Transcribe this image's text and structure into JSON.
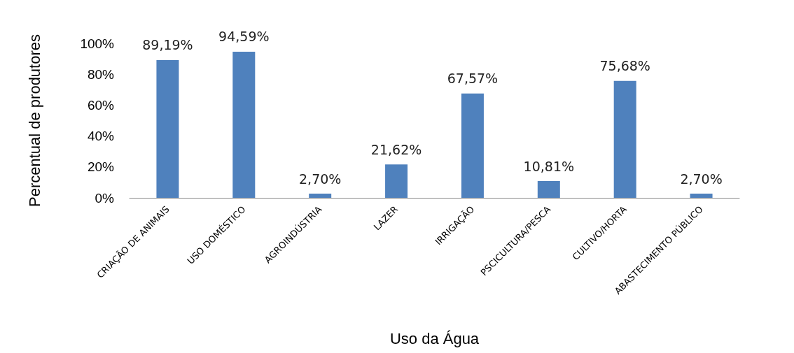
{
  "chart_data": {
    "type": "bar",
    "xlabel": "Uso da Água",
    "ylabel": "Percentual de produtores",
    "categories": [
      "CRIAÇÃO DE ANIMAIS",
      "USO DOMÉSTICO",
      "AGROINDÚSTRIA",
      "LAZER",
      "IRRIGAÇÃO",
      "PSCICULTURA/PESCA",
      "CULTIVO/HORTA",
      "ABASTECIMENTO PÚBLICO"
    ],
    "values": [
      89.19,
      94.59,
      2.7,
      21.62,
      67.57,
      10.81,
      75.68,
      2.7
    ],
    "value_labels": [
      "89,19%",
      "94,59%",
      "2,70%",
      "21,62%",
      "67,57%",
      "10,81%",
      "75,68%",
      "2,70%"
    ],
    "color": "#4f81bd",
    "ylim": [
      0,
      100
    ],
    "yticks": [
      {
        "value": 0,
        "label": "0%"
      },
      {
        "value": 20,
        "label": "20%"
      },
      {
        "value": 40,
        "label": "40%"
      },
      {
        "value": 60,
        "label": "60%"
      },
      {
        "value": 80,
        "label": "80%"
      },
      {
        "value": 100,
        "label": "100%"
      }
    ],
    "grid": false
  }
}
